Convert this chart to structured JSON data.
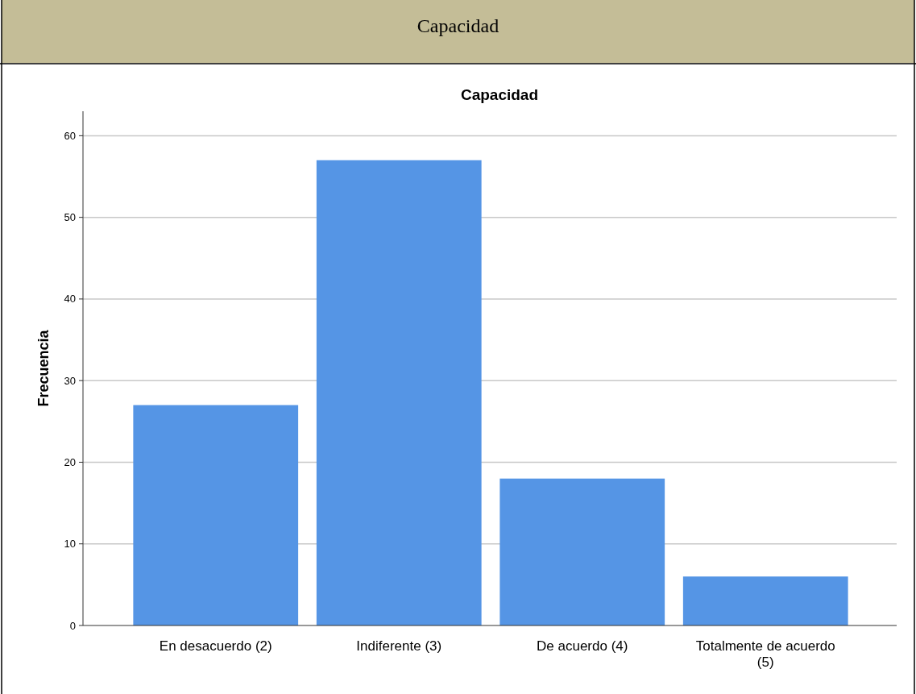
{
  "chart_data": {
    "type": "bar",
    "title": "Capacidad",
    "ylabel": "Frecuencia",
    "annotations": [
      "Capacidad"
    ],
    "categories": [
      "En desacuerdo (2)",
      "Indiferente (3)",
      "De acuerdo (4)",
      "Totalmente de acuerdo (5)"
    ],
    "values": [
      27,
      57,
      18,
      6
    ],
    "color": "#5595e5",
    "ylim": [
      0,
      63
    ],
    "yticks": [
      0,
      10,
      20,
      30,
      40,
      50,
      60
    ],
    "grid": "y"
  }
}
